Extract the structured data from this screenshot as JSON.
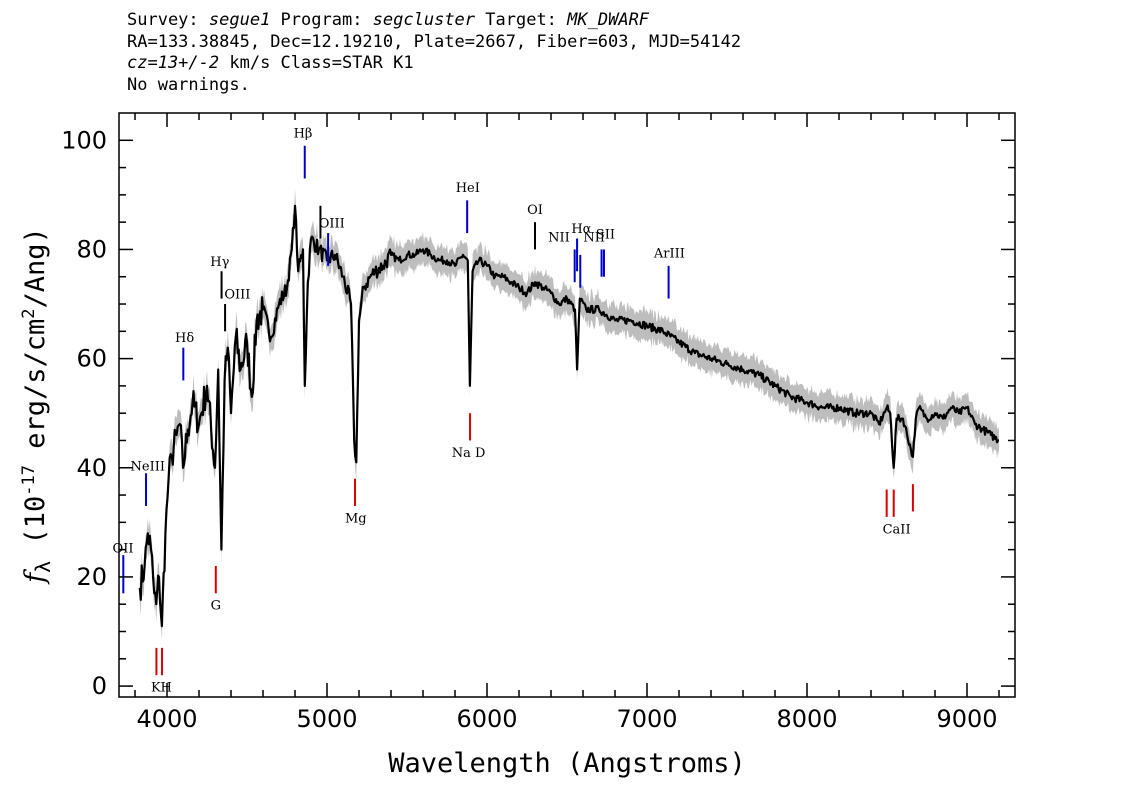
{
  "header": {
    "line1": {
      "survey_label": "Survey: ",
      "survey": "segue1",
      "program_label": " Program: ",
      "program": "segcluster",
      "target_label": " Target: ",
      "target": "MK_DWARF"
    },
    "line2": "RA=133.38845, Dec=12.19210, Plate=2667, Fiber=603, MJD=54142",
    "line3": {
      "cz": "cz=13+/-2",
      "rest": " km/s Class=STAR K1"
    },
    "line4": "No warnings."
  },
  "chart_data": {
    "type": "line",
    "title": "",
    "xlabel": "Wavelength (Angstroms)",
    "ylabel_prefix": "f",
    "ylabel_sub": "λ",
    "ylabel_units": " (10",
    "ylabel_exp": "-17",
    "ylabel_units2": " erg/s/cm",
    "ylabel_exp2": "2",
    "ylabel_units3": "/Ang)",
    "xlim": [
      3700,
      9300
    ],
    "ylim": [
      -2,
      105
    ],
    "xticks": [
      4000,
      5000,
      6000,
      7000,
      8000,
      9000
    ],
    "yticks": [
      0,
      20,
      40,
      60,
      80,
      100
    ],
    "grid": false,
    "colors": {
      "spectrum": "#000000",
      "error": "#bdbdbd",
      "emission": "#0000cc",
      "absorption": "#dd0000",
      "sky": "#000000"
    },
    "series": [
      {
        "x": [
          3830,
          3860,
          3880,
          3900,
          3920,
          3933,
          3950,
          3968,
          3990,
          4010,
          4030,
          4060,
          4080,
          4100,
          4130,
          4160,
          4200,
          4250,
          4300,
          4320,
          4340,
          4360,
          4380,
          4400,
          4430,
          4460,
          4500,
          4530,
          4560,
          4600,
          4650,
          4700,
          4750,
          4780,
          4800,
          4820,
          4850,
          4861,
          4880,
          4900,
          4950,
          5000,
          5050,
          5100,
          5150,
          5170,
          5183,
          5200,
          5230,
          5270,
          5300,
          5350,
          5400,
          5450,
          5500,
          5550,
          5600,
          5650,
          5700,
          5750,
          5800,
          5850,
          5880,
          5893,
          5910,
          5950,
          6000,
          6050,
          6100,
          6150,
          6200,
          6250,
          6300,
          6350,
          6400,
          6450,
          6500,
          6550,
          6563,
          6580,
          6620,
          6700,
          6800,
          6900,
          7000,
          7100,
          7200,
          7300,
          7400,
          7500,
          7600,
          7700,
          7800,
          7900,
          8000,
          8100,
          8200,
          8300,
          8400,
          8450,
          8498,
          8520,
          8542,
          8560,
          8600,
          8662,
          8680,
          8700,
          8750,
          8800,
          8850,
          8900,
          8950,
          9000,
          9050,
          9100,
          9150,
          9200
        ],
        "y": [
          18,
          22,
          28,
          25,
          17,
          15,
          20,
          11,
          28,
          38,
          42,
          46,
          48,
          40,
          47,
          52,
          48,
          55,
          40,
          58,
          25,
          56,
          62,
          50,
          64,
          58,
          63,
          53,
          67,
          69,
          64,
          70,
          73,
          80,
          88,
          76,
          80,
          55,
          74,
          82,
          80,
          78,
          79,
          75,
          70,
          45,
          41,
          67,
          73,
          75,
          76,
          77,
          79,
          78,
          79,
          79,
          80,
          79,
          78,
          78,
          77,
          79,
          78,
          55,
          76,
          78,
          77,
          75,
          75,
          74,
          73,
          72,
          74,
          73,
          72,
          70,
          71,
          69,
          58,
          71,
          69,
          69,
          67,
          67,
          66,
          65,
          63,
          61,
          60,
          59,
          58,
          57,
          55,
          53,
          52,
          51,
          51,
          50,
          50,
          48,
          51,
          50,
          40,
          49,
          49,
          42,
          49,
          51,
          49,
          50,
          49,
          51,
          50,
          51,
          48,
          47,
          46,
          45
        ]
      }
    ],
    "error_band": 3,
    "emission_lines": [
      {
        "label": "OII",
        "x": 3727,
        "y_top": 24,
        "y_bot": 17
      },
      {
        "label": "NeIII",
        "x": 3869,
        "y_top": 39,
        "y_bot": 33
      },
      {
        "label": "Hδ",
        "x": 4102,
        "y_top": 62,
        "y_bot": 56
      },
      {
        "label": "Hγ",
        "x": 4341,
        "y_top": 76,
        "y_bot": 71
      },
      {
        "label": "OIII",
        "x": 4363,
        "y_top": 70,
        "y_bot": 65
      },
      {
        "label": "Hβ",
        "x": 4861,
        "y_top": 99,
        "y_bot": 93
      },
      {
        "label": "OIII",
        "x": 4959,
        "y_top": 88,
        "y_bot": 82
      },
      {
        "label": "OIII",
        "x": 5007,
        "y_top": 83,
        "y_bot": 77
      },
      {
        "label": "HeI",
        "x": 5876,
        "y_top": 89,
        "y_bot": 83
      },
      {
        "label": "OI",
        "x": 6300,
        "y_top": 85,
        "y_bot": 80
      },
      {
        "label": "NII",
        "x": 6548,
        "y_top": 80,
        "y_bot": 74
      },
      {
        "label": "Hα",
        "x": 6563,
        "y_top": 82,
        "y_bot": 76
      },
      {
        "label": "NII",
        "x": 6583,
        "y_top": 79,
        "y_bot": 73
      },
      {
        "label": "SII",
        "x": 6716,
        "y_top": 80,
        "y_bot": 75
      },
      {
        "label": "SII",
        "x": 6731,
        "y_top": 80,
        "y_bot": 75
      },
      {
        "label": "ArIII",
        "x": 7135,
        "y_top": 77,
        "y_bot": 71
      }
    ],
    "absorption_lines": [
      {
        "label": "K",
        "x": 3934,
        "y_top": 7,
        "y_bot": 2
      },
      {
        "label": "H",
        "x": 3969,
        "y_top": 7,
        "y_bot": 2
      },
      {
        "label": "G",
        "x": 4305,
        "y_top": 22,
        "y_bot": 17
      },
      {
        "label": "Mg",
        "x": 5175,
        "y_top": 38,
        "y_bot": 33
      },
      {
        "label": "Na D",
        "x": 5894,
        "y_top": 50,
        "y_bot": 45
      },
      {
        "label": "CaII",
        "x": 8498,
        "y_top": 36,
        "y_bot": 31
      },
      {
        "label": "CaII",
        "x": 8542,
        "y_top": 36,
        "y_bot": 31
      },
      {
        "label": "CaII",
        "x": 8662,
        "y_top": 37,
        "y_bot": 32
      }
    ],
    "line_labels": [
      {
        "text": "OII",
        "x": 3725,
        "y": 24.5
      },
      {
        "text": "NeIII",
        "x": 3880,
        "y": 39.5
      },
      {
        "text": "Hδ",
        "x": 4110,
        "y": 63
      },
      {
        "text": "Hγ",
        "x": 4330,
        "y": 77
      },
      {
        "text": "OIII",
        "x": 4440,
        "y": 71
      },
      {
        "text": "Hβ",
        "x": 4850,
        "y": 100.5
      },
      {
        "text": "OIII",
        "x": 5030,
        "y": 84
      },
      {
        "text": "HeI",
        "x": 5880,
        "y": 90.5
      },
      {
        "text": "OI",
        "x": 6300,
        "y": 86.5
      },
      {
        "text": "NII",
        "x": 6450,
        "y": 81.5
      },
      {
        "text": "Hα",
        "x": 6590,
        "y": 83
      },
      {
        "text": "NII",
        "x": 6670,
        "y": 81.5
      },
      {
        "text": "SII",
        "x": 6740,
        "y": 82
      },
      {
        "text": "ArIII",
        "x": 7140,
        "y": 78.5
      },
      {
        "text": "K",
        "x": 3930,
        "y": -1
      },
      {
        "text": "H",
        "x": 3995,
        "y": -1
      },
      {
        "text": "G",
        "x": 4305,
        "y": 14
      },
      {
        "text": "Mg",
        "x": 5180,
        "y": 30
      },
      {
        "text": "Na D",
        "x": 5885,
        "y": 42
      },
      {
        "text": "CaII",
        "x": 8560,
        "y": 28
      }
    ]
  }
}
